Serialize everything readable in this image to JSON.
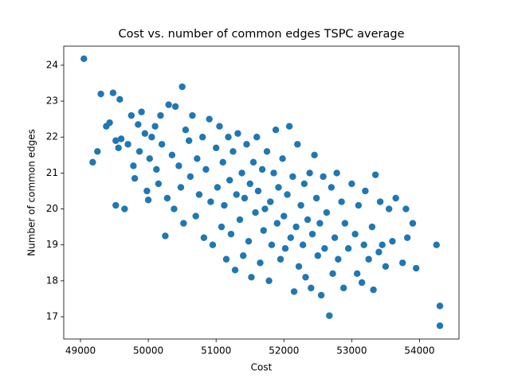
{
  "chart_data": {
    "type": "scatter",
    "title": "Cost vs. number of common edges TSPC average",
    "x_label": "Cost",
    "y_label": "Number of common edges",
    "color": "#1f77b4",
    "xlim": [
      48753,
      54582
    ],
    "ylim": [
      16.38,
      24.53
    ],
    "xticks": [
      49000,
      50000,
      51000,
      52000,
      53000,
      54000
    ],
    "yticks": [
      17,
      18,
      19,
      20,
      21,
      22,
      23,
      24
    ],
    "x": [
      49050,
      49180,
      49250,
      49300,
      49380,
      49430,
      49480,
      49520,
      49560,
      49580,
      49600,
      49520,
      49650,
      49700,
      49750,
      49780,
      49800,
      49850,
      49870,
      49900,
      49950,
      49980,
      50000,
      50020,
      50050,
      50100,
      50120,
      50150,
      50180,
      50200,
      50250,
      50280,
      50300,
      50350,
      50380,
      50400,
      50450,
      50480,
      50500,
      50520,
      50550,
      50600,
      50620,
      50650,
      50700,
      50720,
      50750,
      50800,
      50820,
      50850,
      50900,
      50920,
      50950,
      51000,
      51020,
      51050,
      51080,
      51100,
      51120,
      51150,
      51180,
      51200,
      51220,
      51250,
      51280,
      51300,
      51320,
      51350,
      51380,
      51400,
      51420,
      51450,
      51480,
      51500,
      51520,
      51550,
      51580,
      51600,
      51620,
      51650,
      51680,
      51700,
      51720,
      51750,
      51780,
      51800,
      51820,
      51850,
      51880,
      51900,
      51920,
      51950,
      51980,
      52000,
      52020,
      52050,
      52080,
      52100,
      52130,
      52150,
      52180,
      52200,
      52220,
      52250,
      52280,
      52300,
      52320,
      52350,
      52380,
      52400,
      52420,
      52450,
      52480,
      52500,
      52530,
      52550,
      52580,
      52600,
      52630,
      52670,
      52700,
      52720,
      52750,
      52780,
      52800,
      52850,
      52880,
      52900,
      52950,
      53000,
      53050,
      53080,
      53100,
      53150,
      53180,
      53200,
      53250,
      53300,
      53320,
      53350,
      53400,
      53420,
      53450,
      53500,
      53550,
      53600,
      53650,
      53750,
      53800,
      53820,
      53900,
      53950,
      54250,
      54300,
      54300
    ],
    "values": [
      24.18,
      21.3,
      21.6,
      23.2,
      22.3,
      22.4,
      23.23,
      21.9,
      21.7,
      23.05,
      21.95,
      20.1,
      20.0,
      21.8,
      22.6,
      21.2,
      20.85,
      22.35,
      21.6,
      22.7,
      22.1,
      20.5,
      20.25,
      21.4,
      22.0,
      22.3,
      21.1,
      20.7,
      22.6,
      21.8,
      19.25,
      20.3,
      22.9,
      21.5,
      20.0,
      22.85,
      21.2,
      20.6,
      23.4,
      19.6,
      22.2,
      21.9,
      20.9,
      22.6,
      19.8,
      21.4,
      20.4,
      22.0,
      19.2,
      21.1,
      22.5,
      20.2,
      19.0,
      21.7,
      20.6,
      22.3,
      19.5,
      21.3,
      20.1,
      18.6,
      22.0,
      20.8,
      19.3,
      21.6,
      18.3,
      20.4,
      22.1,
      19.7,
      21.0,
      18.7,
      20.3,
      21.8,
      19.1,
      20.7,
      18.1,
      21.3,
      19.9,
      22.0,
      20.5,
      18.5,
      21.1,
      19.4,
      20.0,
      21.6,
      18.0,
      20.2,
      19.0,
      21.0,
      22.2,
      19.6,
      20.6,
      18.6,
      21.4,
      19.8,
      18.9,
      20.4,
      22.3,
      19.2,
      20.9,
      17.7,
      19.5,
      21.8,
      18.4,
      20.1,
      19.0,
      20.7,
      18.1,
      19.7,
      21.0,
      17.8,
      19.3,
      21.5,
      20.3,
      18.7,
      19.6,
      17.6,
      20.9,
      18.9,
      19.9,
      17.03,
      20.6,
      18.2,
      19.2,
      21.0,
      18.6,
      20.2,
      17.8,
      19.6,
      18.9,
      20.7,
      19.3,
      18.2,
      20.1,
      17.95,
      19.0,
      20.5,
      18.6,
      19.5,
      17.75,
      20.95,
      18.8,
      20.2,
      19.0,
      18.4,
      20.0,
      19.1,
      20.3,
      18.5,
      20.0,
      19.2,
      19.6,
      18.35,
      19.0,
      17.3,
      16.75
    ]
  }
}
